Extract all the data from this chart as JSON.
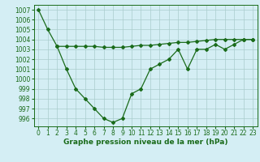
{
  "line1_x": [
    0,
    1,
    2,
    3,
    4,
    5,
    6,
    7,
    8,
    9,
    10,
    11,
    12,
    13,
    14,
    15,
    16,
    17,
    18,
    19,
    20,
    21,
    22,
    23
  ],
  "line1_y": [
    1007,
    1005,
    1003.3,
    1001,
    999,
    998,
    997,
    996,
    995.6,
    996,
    998.5,
    999,
    1001,
    1001.5,
    1002,
    1003,
    1001,
    1003,
    1003,
    1003.5,
    1003,
    1003.5,
    1004,
    1004
  ],
  "line2_x": [
    2,
    3,
    4,
    5,
    6,
    7,
    8,
    9,
    10,
    11,
    12,
    13,
    14,
    15,
    16,
    17,
    18,
    19,
    20,
    21,
    22,
    23
  ],
  "line2_y": [
    1003.3,
    1003.3,
    1003.3,
    1003.3,
    1003.3,
    1003.2,
    1003.2,
    1003.2,
    1003.3,
    1003.4,
    1003.4,
    1003.5,
    1003.6,
    1003.7,
    1003.7,
    1003.8,
    1003.9,
    1004.0,
    1004.0,
    1004.0,
    1004.0,
    1004.0
  ],
  "line_color": "#1a6b1a",
  "bg_color": "#d4eef4",
  "grid_color": "#aacccc",
  "xlabel": "Graphe pression niveau de la mer (hPa)",
  "ylim": [
    995.2,
    1007.5
  ],
  "xlim": [
    -0.5,
    23.5
  ],
  "yticks": [
    996,
    997,
    998,
    999,
    1000,
    1001,
    1002,
    1003,
    1004,
    1005,
    1006,
    1007
  ],
  "xticks": [
    0,
    1,
    2,
    3,
    4,
    5,
    6,
    7,
    8,
    9,
    10,
    11,
    12,
    13,
    14,
    15,
    16,
    17,
    18,
    19,
    20,
    21,
    22,
    23
  ]
}
